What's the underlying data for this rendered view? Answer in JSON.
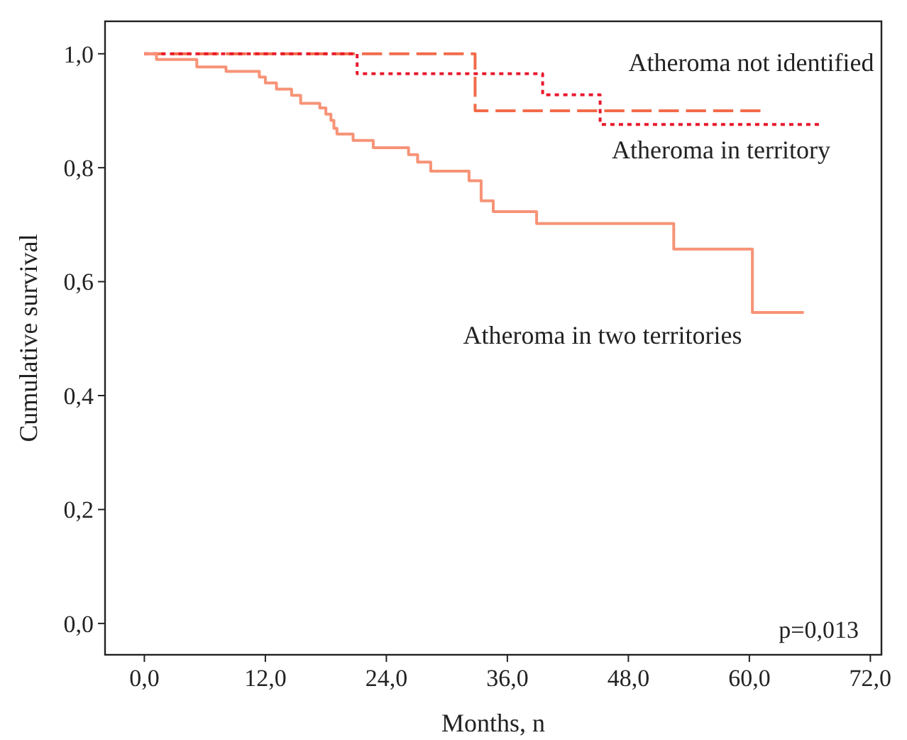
{
  "chart_data": {
    "type": "step",
    "xlabel": "Months, n",
    "ylabel": "Cumulative survival",
    "xlim": [
      -3.9,
      73.1
    ],
    "ylim": [
      -0.055,
      1.057
    ],
    "xticks": [
      {
        "value": 0,
        "label": "0,0"
      },
      {
        "value": 12,
        "label": "12,0"
      },
      {
        "value": 24,
        "label": "24,0"
      },
      {
        "value": 36,
        "label": "36,0"
      },
      {
        "value": 48,
        "label": "48,0"
      },
      {
        "value": 60,
        "label": "60,0"
      },
      {
        "value": 72,
        "label": "72,0"
      }
    ],
    "yticks": [
      {
        "value": 0,
        "label": "0,0"
      },
      {
        "value": 0.2,
        "label": "0,2"
      },
      {
        "value": 0.4,
        "label": "0,4"
      },
      {
        "value": 0.6,
        "label": "0,6"
      },
      {
        "value": 0.8,
        "label": "0,8"
      },
      {
        "value": 1,
        "label": "1,0"
      }
    ],
    "grid": false,
    "legend": false,
    "marker": "none",
    "series": [
      {
        "name": "Atheroma not identified",
        "color": "#f26b4a",
        "line_style": "dashed",
        "x": [
          0,
          32.8,
          61.1
        ],
        "values": [
          1,
          0.9,
          0.9
        ]
      },
      {
        "name": "Atheroma in territory",
        "color": "#e8192c",
        "line_style": "dotted",
        "x": [
          0,
          21.1,
          39.5,
          45.2,
          66.9
        ],
        "values": [
          1,
          0.965,
          0.928,
          0.876,
          0.876
        ]
      },
      {
        "name": "Atheroma in two territories",
        "color": "#f79377",
        "line_style": "solid",
        "x": [
          0,
          1.2,
          5.2,
          8.1,
          11.4,
          12,
          13.1,
          14.6,
          15.5,
          17.4,
          18,
          18.5,
          18.8,
          19.1,
          20.7,
          22.7,
          26.2,
          27.1,
          28.4,
          32.2,
          33.4,
          34.6,
          38.9,
          52.5,
          60.3,
          65.4
        ],
        "values": [
          1,
          0.99,
          0.977,
          0.969,
          0.959,
          0.949,
          0.938,
          0.927,
          0.913,
          0.905,
          0.894,
          0.883,
          0.869,
          0.859,
          0.848,
          0.835,
          0.823,
          0.81,
          0.794,
          0.777,
          0.742,
          0.723,
          0.702,
          0.657,
          0.546,
          0.546
        ]
      }
    ],
    "annotations": [
      "p=0,013"
    ]
  }
}
